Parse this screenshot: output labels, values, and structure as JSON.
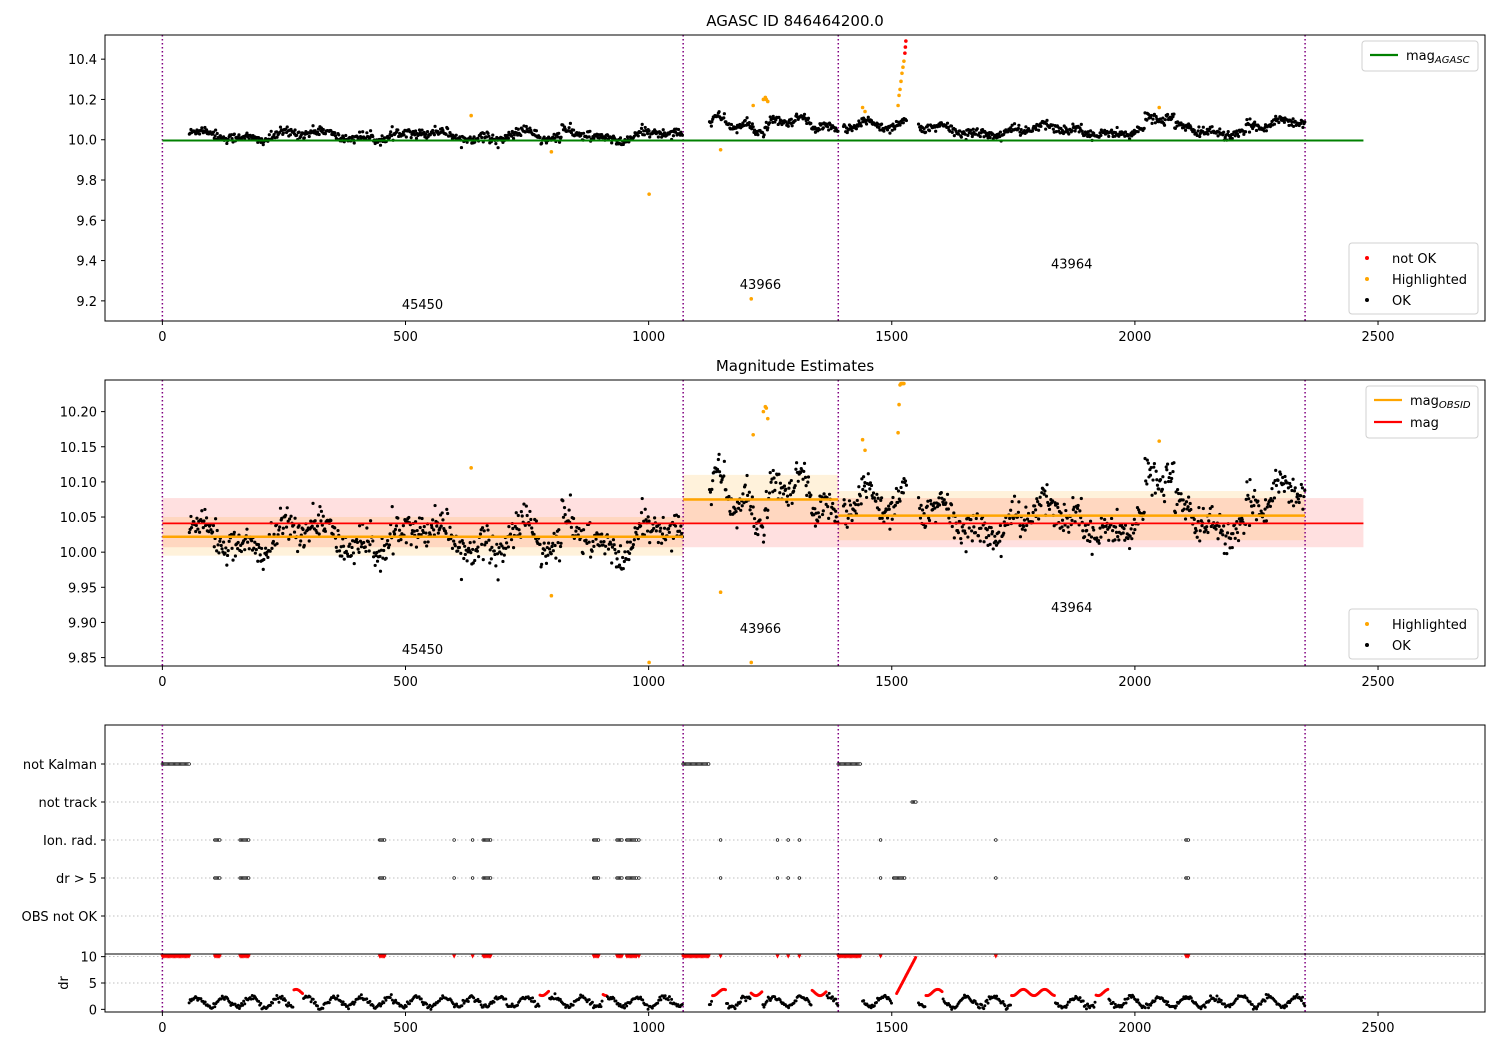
{
  "figure": {
    "title_top": "AGASC ID 846464200.0",
    "title_mid": "Magnitude Estimates"
  },
  "colors": {
    "ok": "#000000",
    "highlighted": "#ffa500",
    "not_ok": "#ff0000",
    "agasc_line": "#008000",
    "obsid_line": "#ffa500",
    "mag_line": "#ff0000",
    "obs_boundary": "#800080"
  },
  "chart_data": [
    {
      "type": "scatter",
      "title": "AGASC ID 846464200.0",
      "xlim": [
        -118,
        2720
      ],
      "ylim": [
        9.1,
        10.52
      ],
      "xticks": [
        0,
        500,
        1000,
        1500,
        2000,
        2500
      ],
      "yticks": [
        9.2,
        9.4,
        9.6,
        9.8,
        10.0,
        10.2,
        10.4
      ],
      "obs_boundaries": [
        0,
        1071,
        1390,
        2350
      ],
      "obsids": [
        {
          "label": "45450",
          "x": 535,
          "y": 9.16
        },
        {
          "label": "43966",
          "x": 1230,
          "y": 9.26
        },
        {
          "label": "43964",
          "x": 1870,
          "y": 9.36
        }
      ],
      "mag_agasc": {
        "value": 9.996,
        "x_range": [
          0,
          2470
        ]
      },
      "legend_lines": [
        {
          "name": "mag",
          "subscript": "AGASC",
          "color": "#008000"
        }
      ],
      "legend_markers": [
        {
          "name": "not OK",
          "color": "#ff0000"
        },
        {
          "name": "Highlighted",
          "color": "#ffa500"
        },
        {
          "name": "OK",
          "color": "#000000"
        }
      ],
      "series": [
        {
          "name": "OK",
          "segments": [
            [
              55,
              1071,
              "base"
            ],
            [
              1125,
              1390,
              "ref2"
            ],
            [
              1400,
              1530,
              "ref3a"
            ],
            [
              1555,
              2350,
              "ref3b"
            ]
          ]
        },
        {
          "name": "Highlighted",
          "points": [
            [
              635,
              10.12
            ],
            [
              800,
              9.94
            ],
            [
              1001,
              9.73
            ],
            [
              1148,
              9.95
            ],
            [
              1211,
              9.21
            ],
            [
              1215,
              10.17
            ],
            [
              1236,
              10.2
            ],
            [
              1240,
              10.21
            ],
            [
              1242,
              10.2
            ],
            [
              1245,
              10.19
            ],
            [
              1440,
              10.16
            ],
            [
              1445,
              10.14
            ],
            [
              1513,
              10.17
            ],
            [
              1515,
              10.22
            ],
            [
              1517,
              10.25
            ],
            [
              1519,
              10.29
            ],
            [
              1521,
              10.33
            ],
            [
              1523,
              10.36
            ],
            [
              1525,
              10.39
            ],
            [
              2050,
              10.16
            ]
          ]
        },
        {
          "name": "not OK",
          "points": [
            [
              1527,
              10.43
            ],
            [
              1528,
              10.46
            ],
            [
              1529,
              10.49
            ]
          ]
        }
      ]
    },
    {
      "type": "scatter",
      "title": "Magnitude Estimates",
      "xlim": [
        -118,
        2720
      ],
      "ylim": [
        9.838,
        10.245
      ],
      "xticks": [
        0,
        500,
        1000,
        1500,
        2000,
        2500
      ],
      "yticks": [
        9.85,
        9.9,
        9.95,
        10.0,
        10.05,
        10.1,
        10.15,
        10.2
      ],
      "ytick_labels": [
        "9.85",
        "9.90",
        "9.95",
        "10.00",
        "10.05",
        "10.10",
        "10.15",
        "10.20"
      ],
      "obs_boundaries": [
        0,
        1071,
        1390,
        2350
      ],
      "obsids": [
        {
          "label": "45450",
          "x": 535,
          "y": 9.855
        },
        {
          "label": "43966",
          "x": 1230,
          "y": 9.885
        },
        {
          "label": "43964",
          "x": 1870,
          "y": 9.915
        }
      ],
      "mag": {
        "value": 10.041,
        "band": [
          10.007,
          10.077
        ],
        "x_range": [
          0,
          2470
        ]
      },
      "mag_obsid": [
        {
          "x_range": [
            0,
            1071
          ],
          "value": 10.022,
          "band": [
            9.995,
            10.05
          ]
        },
        {
          "x_range": [
            1071,
            1390
          ],
          "value": 10.075,
          "band": [
            10.04,
            10.11
          ]
        },
        {
          "x_range": [
            1390,
            2350
          ],
          "value": 10.052,
          "band": [
            10.017,
            10.087
          ]
        }
      ],
      "legend_lines": [
        {
          "name": "mag",
          "subscript": "OBSID",
          "color": "#ffa500"
        },
        {
          "name": "mag",
          "subscript": "",
          "color": "#ff0000"
        }
      ],
      "legend_markers": [
        {
          "name": "Highlighted",
          "color": "#ffa500"
        },
        {
          "name": "OK",
          "color": "#000000"
        }
      ],
      "series": [
        {
          "name": "OK",
          "segments": [
            [
              55,
              1071,
              "base"
            ],
            [
              1125,
              1390,
              "ref2"
            ],
            [
              1400,
              1530,
              "ref3a"
            ],
            [
              1555,
              2350,
              "ref3b"
            ]
          ]
        },
        {
          "name": "Highlighted",
          "points": [
            [
              635,
              10.12
            ],
            [
              800,
              9.938
            ],
            [
              1001,
              9.843
            ],
            [
              1148,
              9.943
            ],
            [
              1211,
              9.843
            ],
            [
              1215,
              10.167
            ],
            [
              1236,
              10.2
            ],
            [
              1240,
              10.207
            ],
            [
              1242,
              10.205
            ],
            [
              1245,
              10.19
            ],
            [
              1440,
              10.16
            ],
            [
              1445,
              10.145
            ],
            [
              1513,
              10.17
            ],
            [
              1515,
              10.21
            ],
            [
              1517,
              10.238
            ],
            [
              1519,
              10.24
            ],
            [
              1521,
              10.24
            ],
            [
              1523,
              10.24
            ],
            [
              1525,
              10.24
            ],
            [
              2050,
              10.158
            ]
          ]
        }
      ]
    },
    {
      "type": "scatter",
      "title": "",
      "xlim": [
        -118,
        2720
      ],
      "flag_labels": [
        "not Kalman",
        "not track",
        "Ion. rad.",
        "dr > 5",
        "OBS not OK"
      ],
      "obs_boundaries": [
        0,
        1071,
        1390,
        2350
      ],
      "flags": {
        "not Kalman": [
          [
            0,
            55
          ],
          [
            1071,
            1125
          ],
          [
            1390,
            1435
          ]
        ],
        "not track": [
          [
            1542,
            1550
          ]
        ],
        "Ion. rad.": [
          [
            108,
            118
          ],
          [
            160,
            178
          ],
          [
            447,
            457
          ],
          [
            600,
            600
          ],
          [
            638,
            638
          ],
          [
            660,
            675
          ],
          [
            887,
            897
          ],
          [
            935,
            945
          ],
          [
            955,
            975
          ],
          [
            980,
            982
          ],
          [
            1148,
            1148
          ],
          [
            1265,
            1265
          ],
          [
            1287,
            1287
          ],
          [
            1310,
            1310
          ],
          [
            1477,
            1477
          ],
          [
            1714,
            1714
          ],
          [
            2105,
            2112
          ]
        ],
        "dr > 5": [
          [
            108,
            118
          ],
          [
            160,
            178
          ],
          [
            447,
            457
          ],
          [
            600,
            600
          ],
          [
            638,
            638
          ],
          [
            660,
            675
          ],
          [
            887,
            897
          ],
          [
            935,
            945
          ],
          [
            955,
            975
          ],
          [
            980,
            982
          ],
          [
            1148,
            1148
          ],
          [
            1265,
            1265
          ],
          [
            1287,
            1287
          ],
          [
            1310,
            1310
          ],
          [
            1477,
            1477
          ],
          [
            1504,
            1528
          ],
          [
            1714,
            1714
          ],
          [
            2105,
            2112
          ]
        ],
        "OBS not OK": []
      }
    },
    {
      "type": "scatter",
      "ylabel": "dr",
      "xlim": [
        -118,
        2720
      ],
      "ylim": [
        -0.5,
        10.5
      ],
      "yticks": [
        0,
        5,
        10
      ],
      "xticks": [
        0,
        500,
        1000,
        1500,
        2000,
        2500
      ],
      "obs_boundaries": [
        0,
        1071,
        1390,
        2350
      ],
      "clip_markers_y": 10,
      "red_ranges": [
        [
          270,
          290
        ],
        [
          775,
          795
        ],
        [
          905,
          915
        ],
        [
          1130,
          1160
        ],
        [
          1210,
          1235
        ],
        [
          1335,
          1365
        ],
        [
          1525,
          1545
        ],
        [
          1570,
          1605
        ],
        [
          1745,
          1800
        ],
        [
          1800,
          1835
        ],
        [
          1920,
          1945
        ]
      ]
    }
  ]
}
